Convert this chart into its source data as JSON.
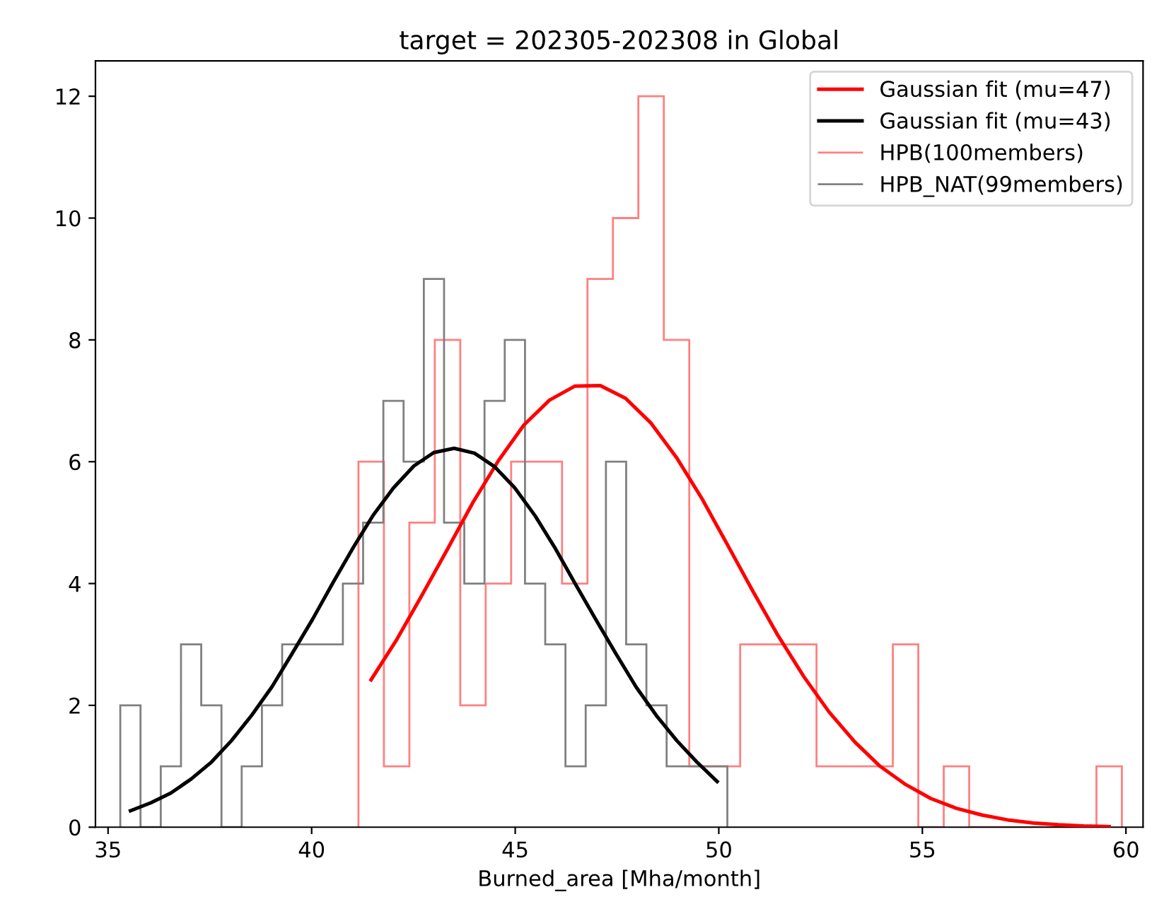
{
  "chart_data": {
    "type": "histogram",
    "title": "target = 202305-202308 in Global",
    "xlabel": "Burned_area [Mha/month]",
    "xlim": [
      34.69,
      60.42
    ],
    "xticks": [
      35,
      40,
      45,
      50,
      55,
      60
    ],
    "ylim": [
      0,
      12.58
    ],
    "yticks": [
      0,
      2,
      4,
      6,
      8,
      10,
      12
    ],
    "grid": false,
    "legend": "top right",
    "series": [
      {
        "name": "Gaussian fit (mu=47)",
        "type": "line",
        "color": "#ff0000",
        "x": [
          41.46,
          42.09,
          42.71,
          43.34,
          43.96,
          44.59,
          45.21,
          45.84,
          46.46,
          47.09,
          47.71,
          48.34,
          48.96,
          49.59,
          50.21,
          50.84,
          51.46,
          52.09,
          52.71,
          53.34,
          53.96,
          54.59,
          55.21,
          55.84,
          56.46,
          57.09,
          57.71,
          58.34,
          58.96,
          59.59
        ],
        "values": [
          2.42,
          3.08,
          3.81,
          4.57,
          5.33,
          6.02,
          6.6,
          7.01,
          7.24,
          7.25,
          7.04,
          6.63,
          6.07,
          5.39,
          4.64,
          3.87,
          3.14,
          2.47,
          1.89,
          1.4,
          1.0,
          0.7,
          0.47,
          0.31,
          0.2,
          0.12,
          0.07,
          0.04,
          0.02,
          0.01
        ]
      },
      {
        "name": "Gaussian fit (mu=43)",
        "type": "line",
        "color": "#000000",
        "x": [
          35.55,
          36.05,
          36.54,
          37.04,
          37.54,
          38.03,
          38.53,
          39.03,
          39.52,
          40.02,
          40.52,
          41.02,
          41.51,
          42.01,
          42.51,
          43.0,
          43.5,
          44.0,
          44.49,
          44.99,
          45.49,
          45.99,
          46.48,
          46.98,
          47.48,
          47.97,
          48.47,
          48.97,
          49.46,
          49.96
        ],
        "values": [
          0.27,
          0.4,
          0.56,
          0.79,
          1.07,
          1.42,
          1.84,
          2.31,
          2.85,
          3.41,
          4.01,
          4.59,
          5.12,
          5.57,
          5.93,
          6.15,
          6.22,
          6.14,
          5.92,
          5.57,
          5.11,
          4.57,
          3.99,
          3.41,
          2.84,
          2.3,
          1.83,
          1.42,
          1.07,
          0.75
        ]
      },
      {
        "name": "HPB(100members)",
        "color": "#ff8080",
        "bins": [
          41.15,
          41.775,
          42.4,
          43.025,
          43.65,
          44.275,
          44.9,
          45.525,
          46.15,
          46.775,
          47.4,
          48.025,
          48.65,
          49.275,
          49.9,
          50.525,
          51.15,
          51.775,
          52.4,
          53.025,
          53.65,
          54.275,
          54.9,
          55.525,
          56.15,
          56.775,
          57.4,
          58.025,
          58.65,
          59.275,
          59.9
        ],
        "values": [
          6,
          1,
          5,
          8,
          2,
          4,
          6,
          6,
          4,
          9,
          10,
          12,
          8,
          1,
          1,
          3,
          3,
          3,
          1,
          1,
          1,
          3,
          0,
          1,
          0,
          0,
          0,
          0,
          0,
          1
        ]
      },
      {
        "name": "HPB_NAT(99members)",
        "color": "#808080",
        "bins": [
          35.3,
          35.797,
          36.294,
          36.791,
          37.288,
          37.785,
          38.282,
          38.779,
          39.276,
          39.773,
          40.27,
          40.767,
          41.264,
          41.761,
          42.258,
          42.755,
          43.252,
          43.749,
          44.246,
          44.743,
          45.24,
          45.737,
          46.234,
          46.731,
          47.228,
          47.725,
          48.222,
          48.719,
          49.216,
          49.713,
          50.21
        ],
        "values": [
          2,
          0,
          1,
          3,
          2,
          0,
          1,
          2,
          3,
          3,
          3,
          4,
          5,
          7,
          6,
          9,
          5,
          4,
          7,
          8,
          4,
          3,
          1,
          2,
          6,
          3,
          2,
          1,
          1,
          1
        ]
      }
    ]
  }
}
